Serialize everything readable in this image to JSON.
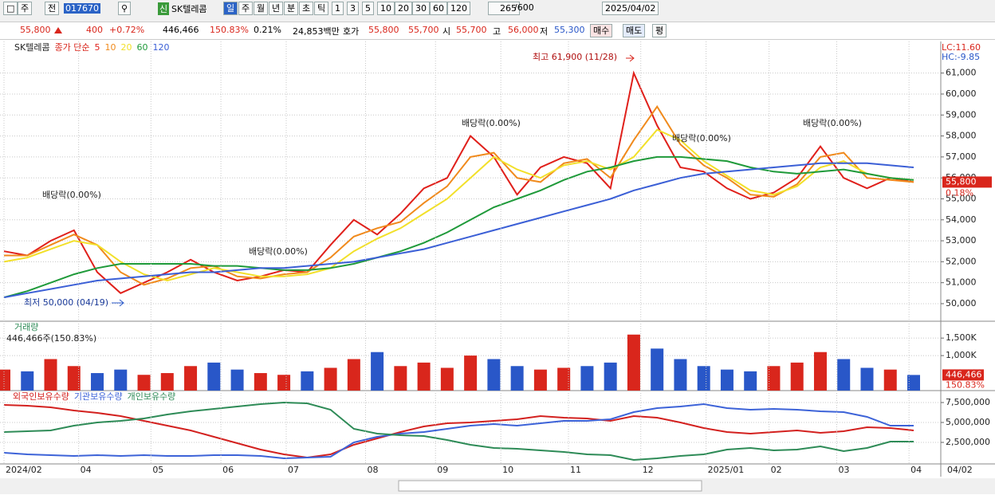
{
  "toolbar": {
    "market": "주",
    "prev": "전",
    "code": "017670",
    "new": "신",
    "name": "SK텔레콤",
    "periods": [
      "일",
      "주",
      "월",
      "년",
      "분",
      "초",
      "틱"
    ],
    "intervals": [
      "1",
      "3",
      "5",
      "10",
      "20",
      "30",
      "60",
      "120"
    ],
    "count": "265",
    "max": "/600",
    "date": "2025/04/02"
  },
  "quote": {
    "price": "55,800",
    "change": "400",
    "rate": "+0.72%",
    "volume": "446,466",
    "volume_rate": "150.83%",
    "turnover": "0.21%",
    "amount": "24,853백만",
    "bid_label": "호가",
    "ask": "55,800",
    "bid": "55,700",
    "open_label": "시",
    "open": "55,700",
    "high_label": "고",
    "high": "56,000",
    "low_label": "저",
    "low": "55,300",
    "buy": "매수",
    "sell": "매도",
    "avg": "평"
  },
  "chart_data": [
    {
      "type": "line",
      "title": "SK텔레콤",
      "legend_label": "종가 단순",
      "lc": "LC:11.60",
      "hc": "HC:-9.85",
      "last_label": "55,800",
      "last_change": "0.18%",
      "high_label": "최고 61,900 (11/28)",
      "low_label": "최저 50,000 (04/19)",
      "annotations": [
        "배당락(0.00%)",
        "배당락(0.00%)",
        "배당락(0.00%)",
        "배당락(0.00%)",
        "배당락(0.00%)"
      ],
      "xlim": [
        0,
        39
      ],
      "ylim": [
        49200,
        61900
      ],
      "yticks": [
        {
          "value": 50000,
          "label": "50,000"
        },
        {
          "value": 51000,
          "label": "51,000"
        },
        {
          "value": 52000,
          "label": "52,000"
        },
        {
          "value": 53000,
          "label": "53,000"
        },
        {
          "value": 54000,
          "label": "54,000"
        },
        {
          "value": 55000,
          "label": "55,000"
        },
        {
          "value": 56000,
          "label": "56,000"
        },
        {
          "value": 57000,
          "label": "57,000"
        },
        {
          "value": 58000,
          "label": "58,000"
        },
        {
          "value": 59000,
          "label": "59,000"
        },
        {
          "value": 60000,
          "label": "60,000"
        },
        {
          "value": 61000,
          "label": "61,000"
        }
      ],
      "series": [
        {
          "name": "5",
          "color": "#e0201b",
          "values": [
            52500,
            52300,
            53000,
            53500,
            51500,
            50500,
            51000,
            51500,
            52100,
            51500,
            51100,
            51300,
            51600,
            51500,
            52800,
            54000,
            53300,
            54300,
            55500,
            56000,
            58000,
            57000,
            55200,
            56500,
            57000,
            56700,
            55500,
            61000,
            58500,
            56500,
            56300,
            55500,
            55000,
            55300,
            56000,
            57500,
            56000,
            55500,
            56000,
            55800
          ]
        },
        {
          "name": "10",
          "color": "#f08a1c",
          "values": [
            52300,
            52300,
            52800,
            53300,
            52800,
            51500,
            50900,
            51200,
            51700,
            51800,
            51300,
            51200,
            51400,
            51500,
            52200,
            53200,
            53600,
            53900,
            54800,
            55600,
            57000,
            57200,
            56000,
            55800,
            56700,
            56900,
            56000,
            57800,
            59400,
            57600,
            56600,
            56000,
            55200,
            55100,
            55700,
            57000,
            57200,
            56000,
            55900,
            55800
          ]
        },
        {
          "name": "20",
          "color": "#f2e02a",
          "values": [
            52000,
            52200,
            52600,
            53000,
            52800,
            52000,
            51400,
            51100,
            51400,
            51700,
            51500,
            51300,
            51300,
            51400,
            51700,
            52500,
            53100,
            53600,
            54300,
            55000,
            56000,
            57000,
            56400,
            56000,
            56600,
            56800,
            56400,
            57000,
            58300,
            57800,
            56800,
            56100,
            55400,
            55200,
            55600,
            56500,
            56800,
            56200,
            56000,
            55900
          ]
        },
        {
          "name": "60",
          "color": "#1f9a3a",
          "values": [
            50300,
            50600,
            51000,
            51400,
            51700,
            51900,
            51900,
            51900,
            51900,
            51800,
            51800,
            51700,
            51600,
            51600,
            51700,
            51900,
            52200,
            52500,
            52900,
            53400,
            54000,
            54600,
            55000,
            55400,
            55900,
            56300,
            56500,
            56800,
            57000,
            57000,
            56900,
            56800,
            56500,
            56300,
            56200,
            56300,
            56400,
            56200,
            56000,
            55900
          ]
        },
        {
          "name": "120",
          "color": "#3b5fd6",
          "values": [
            50300,
            50500,
            50700,
            50900,
            51100,
            51200,
            51300,
            51400,
            51500,
            51500,
            51600,
            51700,
            51700,
            51800,
            51900,
            52000,
            52200,
            52400,
            52600,
            52900,
            53200,
            53500,
            53800,
            54100,
            54400,
            54700,
            55000,
            55400,
            55700,
            56000,
            56200,
            56300,
            56400,
            56500,
            56600,
            56700,
            56700,
            56700,
            56600,
            56500
          ]
        }
      ]
    },
    {
      "type": "bar",
      "title": "거래량",
      "subtitle": "446,466주(150.83%)",
      "last_label": "446,466",
      "last_rate": "150.83%",
      "up_color": "#d9261c",
      "down_color": "#2957c8",
      "xlim": [
        0,
        39
      ],
      "ylim": [
        0,
        1640
      ],
      "yticks": [
        {
          "value": 1000,
          "label": "1,000K"
        },
        {
          "value": 1500,
          "label": "1,500K"
        }
      ],
      "values": [
        600,
        550,
        900,
        700,
        500,
        600,
        450,
        500,
        700,
        800,
        600,
        500,
        450,
        550,
        650,
        900,
        1100,
        700,
        800,
        650,
        1000,
        900,
        700,
        600,
        650,
        700,
        800,
        1600,
        1200,
        900,
        700,
        600,
        550,
        700,
        800,
        1100,
        900,
        650,
        600,
        446.466
      ]
    },
    {
      "type": "line",
      "xlim": [
        0,
        39
      ],
      "ylim": [
        0,
        8600000
      ],
      "yticks": [
        {
          "value": 2500000,
          "label": "2,500,000"
        },
        {
          "value": 5000000,
          "label": "5,000,000"
        },
        {
          "value": 7500000,
          "label": "7,500,000"
        }
      ],
      "xticks": [
        {
          "value": 0,
          "label": "2024/02"
        },
        {
          "value": 3.2,
          "label": "04"
        },
        {
          "value": 6.3,
          "label": "05"
        },
        {
          "value": 9.3,
          "label": "06"
        },
        {
          "value": 12.1,
          "label": "07"
        },
        {
          "value": 15.5,
          "label": "08"
        },
        {
          "value": 18.5,
          "label": "09"
        },
        {
          "value": 21.3,
          "label": "10"
        },
        {
          "value": 24.2,
          "label": "11"
        },
        {
          "value": 27.3,
          "label": "12"
        },
        {
          "value": 30.1,
          "label": "2025/01"
        },
        {
          "value": 32.8,
          "label": "02"
        },
        {
          "value": 35.7,
          "label": "03"
        },
        {
          "value": 38.8,
          "label": "04"
        }
      ],
      "cursor_date": "04/02",
      "series": [
        {
          "name": "외국인보유수량",
          "color": "#d3211f",
          "values": [
            7200000,
            7100000,
            6900000,
            6500000,
            6200000,
            5800000,
            5200000,
            4600000,
            4000000,
            3200000,
            2400000,
            1600000,
            1000000,
            600000,
            1000000,
            2200000,
            3000000,
            3800000,
            4500000,
            4900000,
            5000000,
            5200000,
            5400000,
            5800000,
            5600000,
            5500000,
            5200000,
            5800000,
            5600000,
            5000000,
            4300000,
            3800000,
            3600000,
            3800000,
            4000000,
            3700000,
            3900000,
            4400000,
            4300000,
            4000000
          ]
        },
        {
          "name": "기관보유수량",
          "color": "#3d63d8",
          "values": [
            1200000,
            1000000,
            900000,
            800000,
            900000,
            800000,
            900000,
            800000,
            800000,
            900000,
            900000,
            800000,
            500000,
            600000,
            700000,
            2500000,
            3200000,
            3600000,
            3800000,
            4200000,
            4600000,
            4800000,
            4600000,
            4900000,
            5200000,
            5200000,
            5400000,
            6300000,
            6800000,
            7000000,
            7300000,
            6800000,
            6600000,
            6700000,
            6600000,
            6400000,
            6300000,
            5700000,
            4600000,
            4600000
          ]
        },
        {
          "name": "개인보유수량",
          "color": "#2e8b57",
          "values": [
            3800000,
            3900000,
            4000000,
            4600000,
            5000000,
            5200000,
            5500000,
            6000000,
            6400000,
            6700000,
            7000000,
            7300000,
            7500000,
            7400000,
            6600000,
            4200000,
            3600000,
            3400000,
            3300000,
            2800000,
            2200000,
            1800000,
            1700000,
            1500000,
            1300000,
            1000000,
            900000,
            300000,
            500000,
            800000,
            1000000,
            1600000,
            1800000,
            1500000,
            1600000,
            2000000,
            1400000,
            1800000,
            2600000,
            2600000
          ]
        }
      ]
    }
  ]
}
